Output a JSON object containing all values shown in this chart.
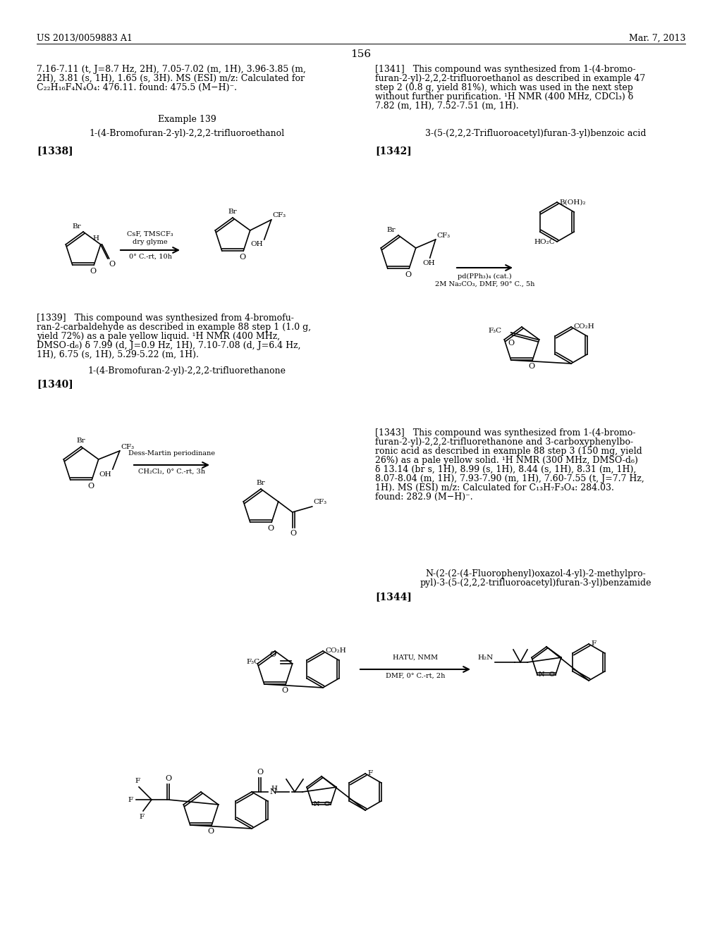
{
  "bg": "#ffffff",
  "hdr_left": "US 2013/0059883 A1",
  "hdr_right": "Mar. 7, 2013",
  "page_num": "156",
  "tl1": "7.16-7.11 (t, J=8.7 Hz, 2H), 7.05-7.02 (m, 1H), 3.96-3.85 (m,",
  "tl2": "2H), 3.81 (s, 1H), 1.65 (s, 3H). MS (ESI) m/z: Calculated for",
  "tl3": "C₂₂H₁₆F₄N₄O₄: 476.11. found: 475.5 (M−H)⁻.",
  "ex139": "Example 139",
  "n1338": "1-(4-Bromofuran-2-yl)-2,2,2-trifluoroethanol",
  "r1338": "[1338]",
  "t1339": "[1339]   This compound was synthesized from 4-bromofu-\nran-2-carbaldehyde as described in example 88 step 1 (1.0 g,\nyield 72%) as a pale yellow liquid. ¹H NMR (400 MHz,\nDMSO-d₆) δ 7.99 (d, J=0.9 Hz, 1H), 7.10-7.08 (d, J=6.4 Hz,\n1H), 6.75 (s, 1H), 5.29-5.22 (m, 1H).",
  "n1340": "1-(4-Bromofuran-2-yl)-2,2,2-trifluorethanone",
  "r1340": "[1340]",
  "tr1": "[1341]   This compound was synthesized from 1-(4-bromo-",
  "tr2": "furan-2-yl)-2,2,2-trifluoroethanol as described in example 47",
  "tr3": "step 2 (0.8 g, yield 81%), which was used in the next step",
  "tr4": "without further purification. ¹H NMR (400 MHz, CDCl₃) δ",
  "tr5": "7.82 (m, 1H), 7.52-7.51 (m, 1H).",
  "n1342": "3-(5-(2,2,2-Trifluoroacetyl)furan-3-yl)benzoic acid",
  "r1342": "[1342]",
  "t1343": "[1343]   This compound was synthesized from 1-(4-bromo-\nfuran-2-yl)-2,2,2-trifluorethanone and 3-carboxyphenylbo-\nronic acid as described in example 88 step 3 (150 mg, yield\n26%) as a pale yellow solid. ¹H NMR (300 MHz, DMSO-d₆)\nδ 13.14 (br s, 1H), 8.99 (s, 1H), 8.44 (s, 1H), 8.31 (m, 1H),\n8.07-8.04 (m, 1H), 7.93-7.90 (m, 1H), 7.60-7.55 (t, J=7.7 Hz,\n1H). MS (ESI) m/z: Calculated for C₁₃H₇F₃O₄: 284.03.\nfound: 282.9 (M−H)⁻.",
  "n1344a": "N-(2-(2-(4-Fluorophenyl)oxazol-4-yl)-2-methylpro-",
  "n1344b": "pyl)-3-(5-(2,2,2-trifluoroacetyl)furan-3-yl)benzamide",
  "r1344": "[1344]",
  "rxn1a": "CsF, TMSCF₃",
  "rxn1b": "dry glyme",
  "rxn1c": "0° C.-rt, 10h",
  "rxn2a": "pd(PPh₃)₄ (cat.)",
  "rxn2b": "2M Na₂CO₃, DMF, 90° C., 5h",
  "rxn3a": "Dess-Martin periodinane",
  "rxn3b": "CH₂Cl₂, 0° C.-rt, 3h",
  "rxn4a": "HATU, NMM",
  "rxn4b": "DMF, 0° C.-rt, 2h"
}
